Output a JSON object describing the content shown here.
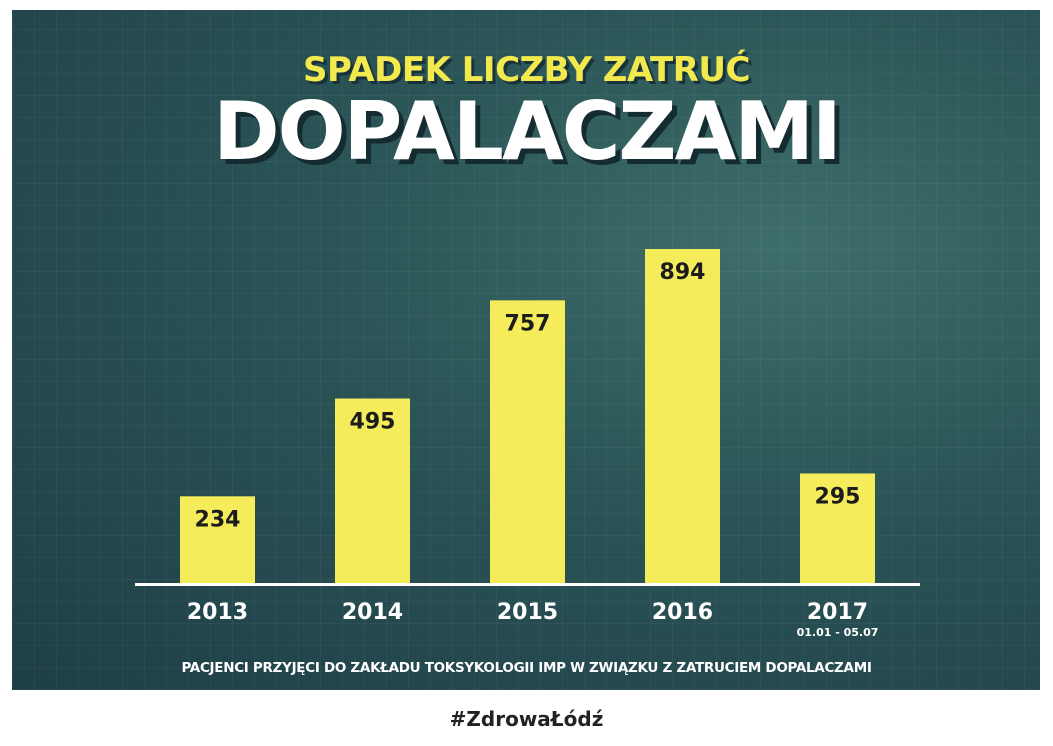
{
  "chart_data": {
    "type": "bar",
    "title": "SPADEK LICZBY ZATRUĆ",
    "subtitle": "DOPALACZAMI",
    "categories": [
      "2013",
      "2014",
      "2015",
      "2016",
      "2017"
    ],
    "category_notes": [
      "",
      "",
      "",
      "",
      "01.01 - 05.07"
    ],
    "values": [
      234,
      495,
      757,
      894,
      295
    ],
    "xlabel": "PACJENCI  PRZYJĘCI DO ZAKŁADU TOKSYKOLOGII IMP W ZWIĄZKU Z ZATRUCIEM DOPALACZAMI",
    "ylabel": "",
    "ylim": [
      0,
      894
    ],
    "grid": false,
    "bar_color": "#f4ec5a"
  },
  "footer": {
    "hashtag": "#ZdrowaŁódź"
  }
}
